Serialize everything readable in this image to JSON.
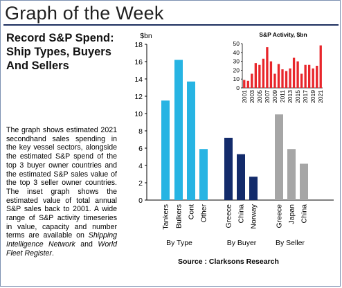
{
  "header": {
    "title": "Graph of the Week"
  },
  "headline": {
    "lines": [
      "Record S&P Spend:",
      "Ship Types, Buyers",
      "And Sellers"
    ]
  },
  "body": {
    "paragraph": "The graph shows estimated 2021 secondhand sales spending in the key vessel sectors, alongside the estimated S&P spend of the top 3 buyer owner countries and the estimated S&P sales value of the top 3 seller owner countries. The inset graph shows the estimated value of total annual S&P sales back to 2001. A wide range of S&P activity timeseries in value, capacity and number terms are available on",
    "link1": "Shipping Intelligence Network",
    "middle": "and",
    "link2": "World Fleet Register",
    "end": "."
  },
  "source": "Source : Clarksons Research",
  "colors": {
    "type": "#27b4e3",
    "buyer": "#132b6b",
    "seller": "#a6a6a6",
    "inset": "#e8262b",
    "rule": "#1c2e5e"
  },
  "chart_data": [
    {
      "type": "bar",
      "ylabel": "$bn",
      "ylim": [
        0,
        18
      ],
      "yticks": [
        0,
        2,
        4,
        6,
        8,
        10,
        12,
        14,
        16,
        18
      ],
      "groups": [
        {
          "name": "By Type",
          "categories": [
            "Tankers",
            "Bulkers",
            "Cont",
            "Other"
          ],
          "values": [
            11.5,
            16.2,
            13.7,
            5.9
          ]
        },
        {
          "name": "By Buyer",
          "categories": [
            "Greece",
            "China",
            "Norway"
          ],
          "values": [
            7.2,
            5.3,
            2.7
          ]
        },
        {
          "name": "By Seller",
          "categories": [
            "Greece",
            "Japan",
            "China"
          ],
          "values": [
            9.9,
            5.9,
            4.2
          ]
        }
      ],
      "grid": false
    },
    {
      "type": "bar",
      "title": "S&P Activity, $bn",
      "x": [
        2001,
        2002,
        2003,
        2004,
        2005,
        2006,
        2007,
        2008,
        2009,
        2010,
        2011,
        2012,
        2013,
        2014,
        2015,
        2016,
        2017,
        2018,
        2019,
        2020,
        2021
      ],
      "xticks": [
        "2001",
        "2003",
        "2005",
        "2007",
        "2009",
        "2011",
        "2013",
        "2015",
        "2017",
        "2019",
        "2021"
      ],
      "values": [
        9,
        8,
        16,
        28,
        26,
        33,
        46,
        30,
        16,
        27,
        21,
        19,
        22,
        34,
        30,
        16,
        26,
        26,
        22,
        25,
        48
      ],
      "ylim": [
        0,
        50
      ],
      "yticks": [
        0,
        10,
        20,
        30,
        40,
        50
      ],
      "grid": false
    }
  ]
}
